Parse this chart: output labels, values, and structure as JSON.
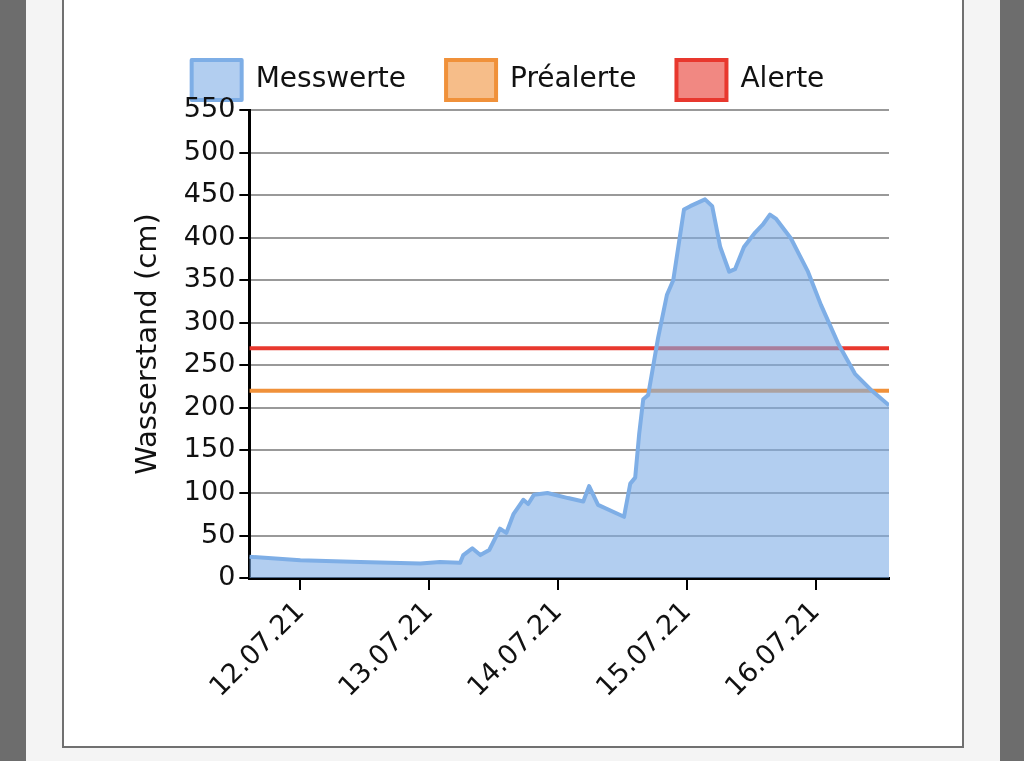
{
  "chart_data": {
    "type": "area",
    "ylabel": "Wasserstand (cm)",
    "x": [
      "--07-11T14:30",
      "--07-12T00:00",
      "--07-12T11:10",
      "--07-12T22:20",
      "--07-13T02:00",
      "--07-13T05:45",
      "--07-13T06:20",
      "--07-13T08:00",
      "--07-13T09:30",
      "--07-13T11:10",
      "--07-13T13:10",
      "--07-13T14:20",
      "--07-13T15:40",
      "--07-13T17:30",
      "--07-13T18:25",
      "--07-13T19:30",
      "--07-13T22:00",
      "--07-14T01:50",
      "--07-14T04:40",
      "--07-14T05:45",
      "--07-14T07:25",
      "--07-14T12:15",
      "--07-14T13:25",
      "--07-14T14:20",
      "--07-14T15:05",
      "--07-14T15:50",
      "--07-14T16:45",
      "--07-14T18:35",
      "--07-14T20:15",
      "--07-14T21:25",
      "--07-14T23:25",
      "--07-15T00:35",
      "--07-15T03:20",
      "--07-15T04:40",
      "--07-15T06:10",
      "--07-15T07:50",
      "--07-15T08:55",
      "--07-15T10:35",
      "--07-15T12:40",
      "--07-15T14:10",
      "--07-15T15:25",
      "--07-15T16:35",
      "--07-15T19:20",
      "--07-15T22:30",
      "--07-16T00:55",
      "--07-16T04:05",
      "--07-16T07:15",
      "--07-16T10:25",
      "--07-16T13:35"
    ],
    "series": [
      {
        "name": "Messwerte",
        "color": "#7eaee6",
        "values": [
          25,
          21,
          19,
          17,
          19,
          18,
          27,
          35,
          27,
          33,
          58,
          53,
          75,
          92,
          87,
          98,
          100,
          94,
          90,
          108,
          86,
          72,
          111,
          118,
          170,
          210,
          215,
          282,
          333,
          350,
          433,
          437,
          445,
          437,
          389,
          360,
          363,
          389,
          406,
          416,
          427,
          422,
          399,
          360,
          321,
          276,
          240,
          220,
          203
        ]
      }
    ],
    "xlim": [
      "--07-11T14:30",
      "--07-16T13:35"
    ],
    "xticks": [
      {
        "value": "--07-12",
        "label": "12.07.21"
      },
      {
        "value": "--07-13",
        "label": "13.07.21"
      },
      {
        "value": "--07-14",
        "label": "14.07.21"
      },
      {
        "value": "--07-15",
        "label": "15.07.21"
      },
      {
        "value": "--07-16",
        "label": "16.07.21"
      }
    ],
    "ylim": [
      0,
      550
    ],
    "yticks": [
      0,
      50,
      100,
      150,
      200,
      250,
      300,
      350,
      400,
      450,
      500,
      550
    ],
    "ref_lines": [
      {
        "axis": "y",
        "value": 220,
        "label": "Préalerte",
        "color": "#f0913a"
      },
      {
        "axis": "y",
        "value": 270,
        "label": "Alerte",
        "color": "#e8382e"
      }
    ],
    "grid": "y",
    "legend": "top"
  }
}
